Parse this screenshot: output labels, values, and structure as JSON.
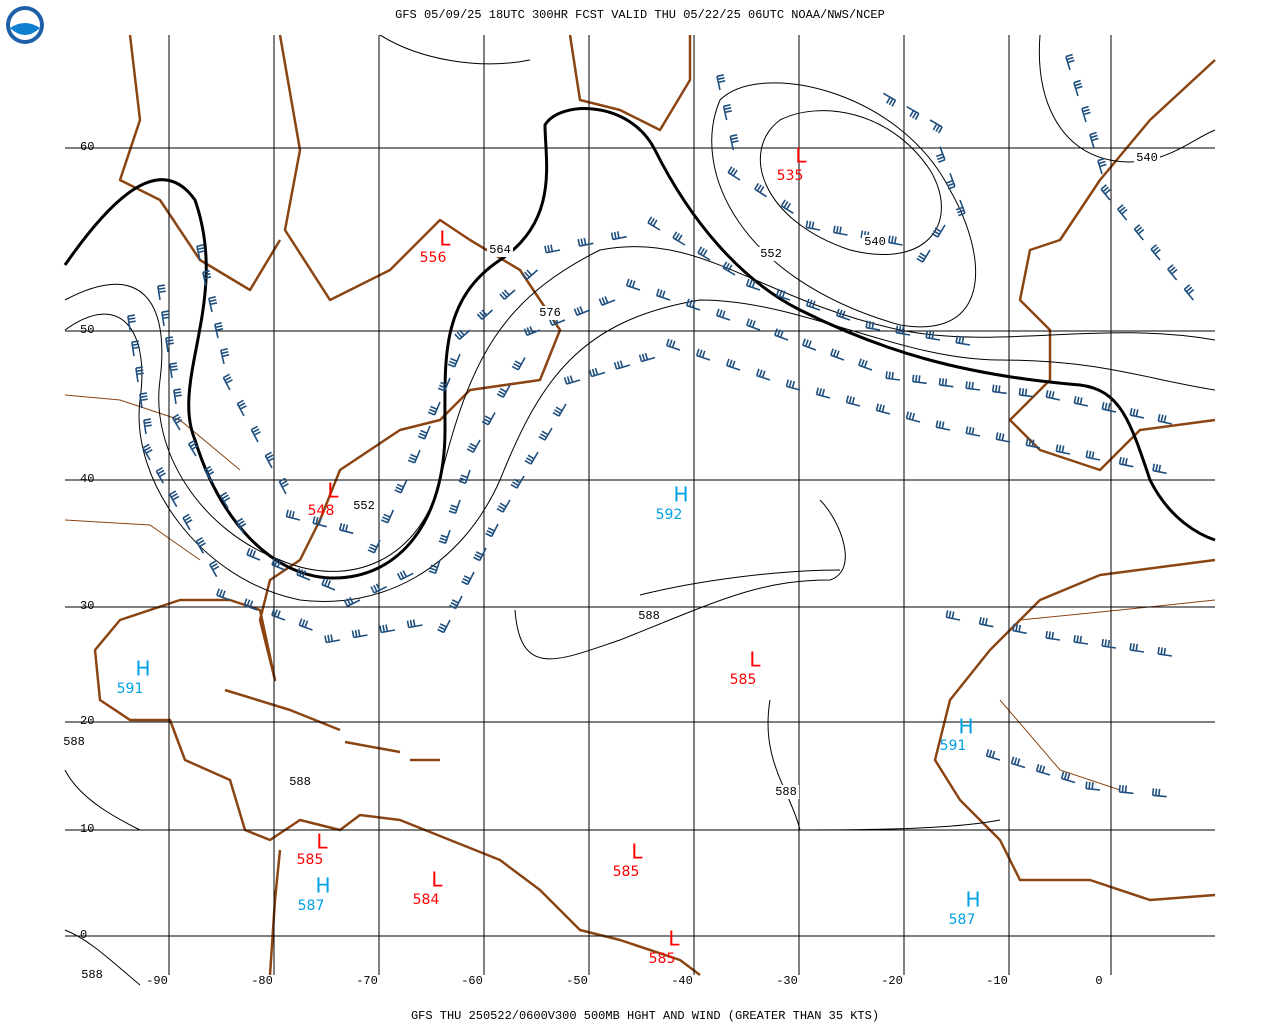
{
  "header": {
    "title": "GFS 05/09/25 18UTC 300HR FCST VALID THU 05/22/25 06UTC NOAA/NWS/NCEP"
  },
  "footer": {
    "caption": "GFS THU 250522/0600V300 500MB HGHT AND WIND (GREATER THAN 35 KTS)"
  },
  "grid": {
    "longitudes": [
      -90,
      -80,
      -70,
      -60,
      -50,
      -40,
      -30,
      -20,
      -10,
      0
    ],
    "latitudes": [
      60,
      50,
      40,
      30,
      20,
      10,
      0
    ]
  },
  "centers": [
    {
      "letter": "L",
      "value": 556,
      "color": "#ff0000"
    },
    {
      "letter": "L",
      "value": 535,
      "color": "#ff0000"
    },
    {
      "letter": "L",
      "value": 548,
      "color": "#ff0000"
    },
    {
      "letter": "H",
      "value": 592,
      "color": "#00a0e6"
    },
    {
      "letter": "H",
      "value": 591,
      "color": "#00a0e6"
    },
    {
      "letter": "L",
      "value": 585,
      "color": "#ff0000"
    },
    {
      "letter": "H",
      "value": 591,
      "color": "#00a0e6"
    },
    {
      "letter": "L",
      "value": 585,
      "color": "#ff0000"
    },
    {
      "letter": "H",
      "value": 587,
      "color": "#00a0e6"
    },
    {
      "letter": "L",
      "value": 584,
      "color": "#ff0000"
    },
    {
      "letter": "L",
      "value": 585,
      "color": "#ff0000"
    },
    {
      "letter": "L",
      "value": 585,
      "color": "#ff0000"
    },
    {
      "letter": "H",
      "value": 587,
      "color": "#00a0e6"
    }
  ],
  "contour_labels": [
    564,
    576,
    552,
    540,
    540,
    552,
    588,
    588,
    588,
    588,
    588
  ]
}
